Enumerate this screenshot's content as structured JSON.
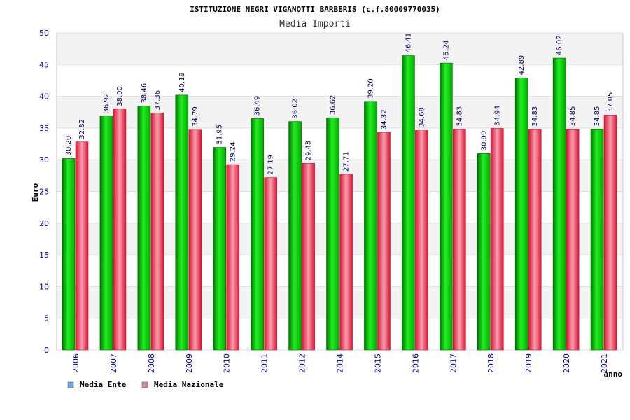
{
  "chart_data": {
    "type": "bar",
    "title": "ISTITUZIONE NEGRI VIGANOTTI BARBERIS (c.f.80009770035)",
    "subtitle": "Media Importi",
    "xlabel": "anno",
    "ylabel": "Euro",
    "ylim": [
      0,
      50
    ],
    "yticks": [
      0,
      5,
      10,
      15,
      20,
      25,
      30,
      35,
      40,
      45,
      50
    ],
    "categories": [
      "2006",
      "2007",
      "2008",
      "2009",
      "2010",
      "2011",
      "2012",
      "2014",
      "2015",
      "2016",
      "2017",
      "2018",
      "2019",
      "2020",
      "2021"
    ],
    "series": [
      {
        "name": "Media Ente",
        "color": "#00bb00",
        "legend_color": "#66aaee",
        "values": [
          30.2,
          36.92,
          38.46,
          40.19,
          31.95,
          36.49,
          36.02,
          36.62,
          39.2,
          46.41,
          45.24,
          30.99,
          42.89,
          46.02,
          34.85
        ],
        "labels": [
          "30.20",
          "36.92",
          "38.46",
          "40.19",
          "31.95",
          "36.49",
          "36.02",
          "36.62",
          "39.20",
          "46.41",
          "45.24",
          "30.99",
          "42.89",
          "46.02",
          "34.85"
        ]
      },
      {
        "name": "Media Nazionale",
        "color": "#ee2244",
        "legend_color": "#dd88aa",
        "values": [
          32.82,
          38.0,
          37.36,
          34.79,
          29.24,
          27.19,
          29.43,
          27.71,
          34.32,
          34.68,
          34.83,
          34.94,
          34.83,
          34.85,
          37.05
        ],
        "labels": [
          "32.82",
          "38.00",
          "37.36",
          "34.79",
          "29.24",
          "27.19",
          "29.43",
          "27.71",
          "34.32",
          "34.68",
          "34.83",
          "34.94",
          "34.83",
          "34.85",
          "37.05"
        ]
      }
    ],
    "grid": true,
    "legend_position": "bottom-left"
  }
}
